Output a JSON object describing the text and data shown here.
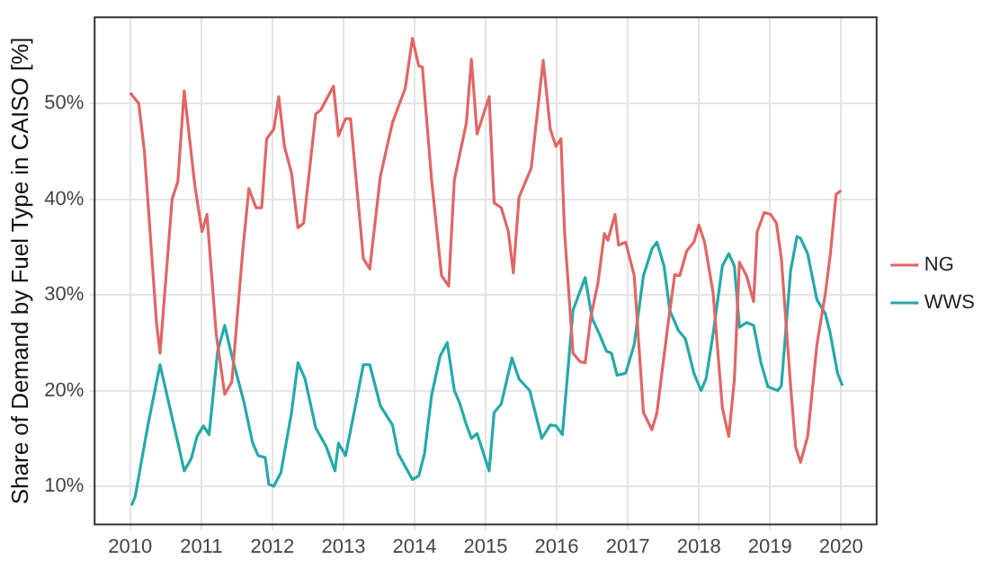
{
  "chart_data": {
    "type": "line",
    "ylabel": "Share of Demand by Fuel Type in CAISO [%]",
    "xlim": [
      2009.5,
      2020.5
    ],
    "xticks": [
      2010,
      2011,
      2012,
      2013,
      2014,
      2015,
      2016,
      2017,
      2018,
      2019,
      2020
    ],
    "ylim": [
      6,
      59
    ],
    "yticks": [
      {
        "value": 10,
        "label": "10%"
      },
      {
        "value": 20,
        "label": "20%"
      },
      {
        "value": 30,
        "label": "30%"
      },
      {
        "value": 40,
        "label": "40%"
      },
      {
        "value": 50,
        "label": "50%"
      }
    ],
    "grid": true,
    "legend": "right",
    "marker": "none",
    "line_style": "solid",
    "series": [
      {
        "name": "NG",
        "color": "#e06666",
        "x": [
          2010.0,
          2010.12,
          2010.2,
          2010.37,
          2010.42,
          2010.59,
          2010.67,
          2010.76,
          2010.91,
          2011.01,
          2011.08,
          2011.21,
          2011.33,
          2011.43,
          2011.58,
          2011.67,
          2011.77,
          2011.85,
          2011.92,
          2012.02,
          2012.09,
          2012.17,
          2012.27,
          2012.36,
          2012.44,
          2012.61,
          2012.68,
          2012.86,
          2012.93,
          2013.03,
          2013.1,
          2013.28,
          2013.37,
          2013.52,
          2013.69,
          2013.87,
          2013.97,
          2014.06,
          2014.11,
          2014.24,
          2014.38,
          2014.48,
          2014.56,
          2014.73,
          2014.8,
          2014.88,
          2014.98,
          2015.05,
          2015.12,
          2015.22,
          2015.32,
          2015.39,
          2015.47,
          2015.64,
          2015.81,
          2015.91,
          2015.99,
          2016.06,
          2016.11,
          2016.23,
          2016.33,
          2016.4,
          2016.48,
          2016.58,
          2016.67,
          2016.72,
          2016.82,
          2016.87,
          2016.97,
          2017.09,
          2017.22,
          2017.34,
          2017.41,
          2017.56,
          2017.66,
          2017.73,
          2017.83,
          2017.93,
          2018.0,
          2018.08,
          2018.2,
          2018.33,
          2018.42,
          2018.5,
          2018.57,
          2018.67,
          2018.77,
          2018.82,
          2018.92,
          2019.01,
          2019.09,
          2019.16,
          2019.29,
          2019.36,
          2019.43,
          2019.53,
          2019.66,
          2019.78,
          2019.85,
          2019.93,
          2020.0
        ],
        "values": [
          51.1,
          50,
          45,
          27.1,
          23.9,
          40,
          41.8,
          51.3,
          41.4,
          36.6,
          38.4,
          25.9,
          19.6,
          20.9,
          34.3,
          41.1,
          39.1,
          39.1,
          46.3,
          47.3,
          50.7,
          45.5,
          42.7,
          37,
          37.5,
          48.9,
          49.3,
          51.8,
          46.6,
          48.4,
          48.4,
          33.8,
          32.7,
          42.4,
          48,
          51.6,
          56.8,
          53.9,
          53.8,
          42,
          32,
          30.9,
          42,
          48,
          54.6,
          46.8,
          49.1,
          50.7,
          39.6,
          39.1,
          36.6,
          32.3,
          40.2,
          43.2,
          54.5,
          47.3,
          45.5,
          46.3,
          36.6,
          23.9,
          23,
          22.9,
          27.7,
          31.2,
          36.4,
          35.7,
          38.4,
          35.2,
          35.5,
          32,
          17.7,
          15.9,
          17.7,
          26.6,
          32.1,
          32,
          34.6,
          35.5,
          37.3,
          35.5,
          30.2,
          18.2,
          15.2,
          21.2,
          33.4,
          32,
          29.3,
          36.6,
          38.6,
          38.4,
          37.5,
          33.8,
          20.5,
          14.1,
          12.5,
          15.2,
          24.8,
          30.2,
          34.3,
          40.5,
          40.9
        ]
      },
      {
        "name": "WWS",
        "color": "#26a9a9",
        "x": [
          2010.02,
          2010.07,
          2010.25,
          2010.42,
          2010.54,
          2010.67,
          2010.76,
          2010.86,
          2010.94,
          2011.03,
          2011.11,
          2011.23,
          2011.33,
          2011.43,
          2011.6,
          2011.72,
          2011.8,
          2011.9,
          2011.95,
          2012.02,
          2012.12,
          2012.27,
          2012.36,
          2012.46,
          2012.61,
          2012.76,
          2012.88,
          2012.93,
          2013.03,
          2013.15,
          2013.28,
          2013.37,
          2013.52,
          2013.69,
          2013.77,
          2013.97,
          2014.06,
          2014.14,
          2014.24,
          2014.36,
          2014.46,
          2014.56,
          2014.63,
          2014.73,
          2014.8,
          2014.88,
          2015.05,
          2015.12,
          2015.22,
          2015.37,
          2015.47,
          2015.62,
          2015.79,
          2015.91,
          2015.99,
          2016.08,
          2016.23,
          2016.4,
          2016.5,
          2016.6,
          2016.7,
          2016.77,
          2016.85,
          2016.97,
          2017.09,
          2017.22,
          2017.34,
          2017.41,
          2017.51,
          2017.59,
          2017.71,
          2017.81,
          2017.93,
          2018.03,
          2018.1,
          2018.2,
          2018.33,
          2018.42,
          2018.5,
          2018.57,
          2018.67,
          2018.77,
          2018.87,
          2018.97,
          2019.11,
          2019.16,
          2019.29,
          2019.38,
          2019.43,
          2019.53,
          2019.66,
          2019.78,
          2019.85,
          2019.95,
          2020.02
        ],
        "values": [
          8,
          8.9,
          16.4,
          22.7,
          18.8,
          14.6,
          11.6,
          12.9,
          15.2,
          16.3,
          15.4,
          24.1,
          26.8,
          23.6,
          18.8,
          14.6,
          13.2,
          13,
          10.2,
          10,
          11.4,
          17.7,
          22.9,
          21.2,
          16.1,
          14.1,
          11.6,
          14.5,
          13.2,
          17.7,
          22.7,
          22.7,
          18.4,
          16.4,
          13.4,
          10.7,
          11.1,
          13.4,
          19.5,
          23.6,
          25,
          20,
          18.8,
          16.4,
          15,
          15.5,
          11.6,
          17.7,
          18.6,
          23.4,
          21.2,
          20,
          15,
          16.4,
          16.3,
          15.4,
          28.4,
          31.8,
          27.5,
          25.9,
          24.1,
          23.9,
          21.6,
          21.8,
          24.8,
          32,
          34.8,
          35.5,
          33,
          28.4,
          26.3,
          25.4,
          21.8,
          20,
          21.2,
          25.9,
          33,
          34.3,
          33,
          26.6,
          27.1,
          26.8,
          23,
          20.4,
          20,
          20.5,
          32.5,
          36.1,
          35.9,
          34.3,
          29.5,
          28,
          25.9,
          21.8,
          20.5
        ]
      }
    ]
  }
}
